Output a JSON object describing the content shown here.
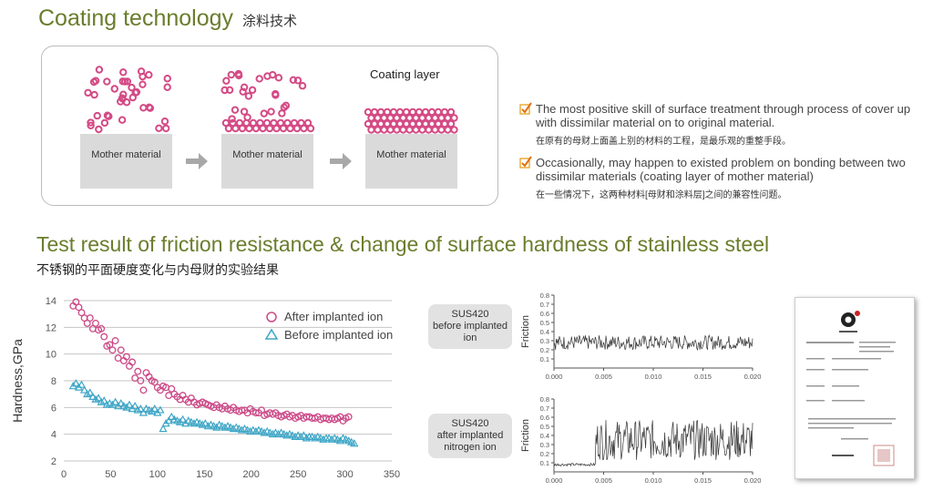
{
  "section1": {
    "title": "Coating technology",
    "title_zh": "涂料技术",
    "mother_label": "Mother material",
    "coating_layer_label": "Coating layer",
    "particle_color": "#d44a85",
    "bullets": [
      {
        "en": "The most positive skill of surface treatment through process of cover up with dissimilar material on to original material.",
        "zh": "在原有的母财上面盖上别的材料的工程，是最乐观的重整手段。"
      },
      {
        "en": "Occasionally, may happen to existed problem on bonding between two dissimilar materials (coating layer of mother material)",
        "zh": "在一些情况下，这两种材料[母财和涂料层]之间的兼容性问题。"
      }
    ]
  },
  "section2": {
    "title": "Test result of friction resistance & change of surface hardness of stainless steel",
    "subtitle_zh": "不锈钢的平面硬度变化与内母财的实验结果",
    "sus_before": [
      "SUS420",
      "before implanted",
      "ion"
    ],
    "sus_after": [
      "SUS420",
      "after implanted",
      "nitrogen ion"
    ],
    "accent_color": "#6a7d2c"
  },
  "chart_data": [
    {
      "type": "scatter",
      "ylabel": "Hardness,GPa",
      "xlabel": "",
      "xlim": [
        0,
        350
      ],
      "ylim": [
        2,
        14
      ],
      "xticks": [
        0,
        50,
        100,
        150,
        200,
        250,
        300,
        350
      ],
      "yticks": [
        2,
        4,
        6,
        8,
        10,
        12,
        14
      ],
      "legend_position": "top-right",
      "series": [
        {
          "name": "After implanted ion",
          "marker": "circle",
          "color": "#cc4a88",
          "x": [
            10,
            13,
            16,
            19,
            22,
            25,
            28,
            31,
            34,
            37,
            40,
            43,
            46,
            49,
            52,
            55,
            58,
            61,
            64,
            67,
            70,
            73,
            76,
            79,
            82,
            85,
            88,
            91,
            94,
            97,
            100,
            103,
            106,
            109,
            112,
            115,
            118,
            121,
            124,
            127,
            130,
            133,
            136,
            139,
            142,
            145,
            148,
            151,
            154,
            157,
            160,
            163,
            166,
            169,
            172,
            175,
            178,
            181,
            184,
            187,
            190,
            193,
            196,
            199,
            202,
            205,
            208,
            211,
            214,
            217,
            220,
            223,
            226,
            229,
            232,
            235,
            238,
            241,
            244,
            247,
            250,
            253,
            256,
            259,
            262,
            265,
            268,
            271,
            274,
            277,
            280,
            283,
            286,
            289,
            292,
            295,
            298,
            301,
            304
          ],
          "y": [
            13.6,
            13.9,
            13.5,
            13.1,
            12.7,
            12.3,
            12.7,
            11.9,
            12.3,
            11.8,
            11.9,
            11.3,
            10.6,
            10.7,
            10.3,
            11.0,
            9.7,
            10.3,
            9.5,
            9.8,
            9.1,
            9.4,
            8.2,
            8.7,
            8.0,
            7.3,
            8.6,
            8.3,
            8.0,
            7.9,
            7.5,
            7.3,
            7.6,
            7.5,
            6.9,
            7.4,
            7.0,
            6.8,
            6.6,
            6.9,
            6.6,
            6.4,
            6.7,
            6.4,
            6.2,
            6.3,
            6.4,
            6.3,
            6.2,
            6.1,
            6.0,
            6.2,
            6.0,
            5.9,
            6.1,
            5.9,
            5.8,
            6.0,
            5.8,
            5.7,
            5.8,
            5.8,
            5.6,
            5.9,
            5.7,
            5.6,
            5.6,
            5.8,
            5.4,
            5.5,
            5.6,
            5.5,
            5.6,
            5.4,
            5.3,
            5.4,
            5.5,
            5.3,
            5.4,
            5.2,
            5.3,
            5.4,
            5.2,
            5.3,
            5.3,
            5.2,
            5.2,
            5.3,
            5.1,
            5.2,
            5.2,
            5.1,
            5.2,
            5.1,
            5.2,
            5.3,
            5.0,
            5.2,
            5.3
          ]
        },
        {
          "name": "Before implanted ion",
          "marker": "triangle",
          "color": "#3ea6c6",
          "x": [
            10,
            13,
            16,
            19,
            22,
            25,
            28,
            31,
            34,
            37,
            40,
            43,
            46,
            49,
            52,
            55,
            58,
            61,
            64,
            67,
            70,
            73,
            76,
            79,
            82,
            85,
            88,
            91,
            94,
            97,
            100,
            103,
            106,
            109,
            112,
            115,
            118,
            121,
            124,
            127,
            130,
            133,
            136,
            139,
            142,
            145,
            148,
            151,
            154,
            157,
            160,
            163,
            166,
            169,
            172,
            175,
            178,
            181,
            184,
            187,
            190,
            193,
            196,
            199,
            202,
            205,
            208,
            211,
            214,
            217,
            220,
            223,
            226,
            229,
            232,
            235,
            238,
            241,
            244,
            247,
            250,
            253,
            256,
            259,
            262,
            265,
            268,
            271,
            274,
            277,
            280,
            283,
            286,
            289,
            292,
            295,
            298,
            301,
            304,
            307,
            310
          ],
          "y": [
            7.6,
            7.8,
            7.5,
            7.7,
            7.3,
            7.0,
            7.1,
            6.8,
            6.6,
            6.7,
            6.4,
            6.5,
            6.2,
            6.3,
            6.2,
            6.4,
            6.1,
            6.3,
            6.1,
            6.0,
            6.2,
            5.9,
            6.1,
            5.8,
            5.9,
            5.6,
            5.9,
            5.8,
            5.7,
            5.9,
            5.6,
            5.8,
            4.4,
            4.8,
            5.0,
            5.3,
            5.1,
            5.0,
            4.9,
            5.1,
            4.8,
            5.0,
            4.9,
            4.8,
            4.9,
            4.8,
            4.7,
            4.8,
            4.6,
            4.7,
            4.6,
            4.5,
            4.7,
            4.6,
            4.5,
            4.6,
            4.5,
            4.4,
            4.5,
            4.4,
            4.3,
            4.4,
            4.3,
            4.2,
            4.3,
            4.2,
            4.3,
            4.2,
            4.1,
            4.2,
            4.1,
            4.0,
            4.1,
            4.0,
            4.1,
            4.0,
            3.9,
            4.0,
            3.9,
            3.8,
            3.9,
            3.8,
            3.9,
            3.7,
            3.8,
            3.8,
            3.7,
            3.8,
            3.7,
            3.6,
            3.7,
            3.7,
            3.6,
            3.7,
            3.6,
            3.5,
            3.7,
            3.6,
            3.5,
            3.4,
            3.3
          ]
        }
      ]
    },
    {
      "type": "line",
      "title": "SUS420 before implanted ion",
      "ylabel": "Friction",
      "xlim": [
        0,
        0.02
      ],
      "ylim": [
        0,
        0.8
      ],
      "xticks": [
        "0.000",
        "0.005",
        "0.010",
        "0.015",
        "0.020"
      ],
      "yticks": [
        "0.1",
        "0.2",
        "0.3",
        "0.4",
        "0.5",
        "0.6",
        "0.7",
        "0.8"
      ],
      "description_values": {
        "mean": 0.28,
        "noise": 0.08,
        "points": 260
      }
    },
    {
      "type": "line",
      "title": "SUS420 after implanted nitrogen ion",
      "ylabel": "Friction",
      "xlim": [
        0,
        0.02
      ],
      "ylim": [
        0,
        0.8
      ],
      "xticks": [
        "0.000",
        "0.005",
        "0.010",
        "0.015",
        "0.020"
      ],
      "yticks": [
        "0.1",
        "0.2",
        "0.3",
        "0.4",
        "0.5",
        "0.6",
        "0.7",
        "0.8"
      ],
      "description_values": {
        "start_level": 0.08,
        "transition_x": 0.0042,
        "mean": 0.35,
        "noise": 0.22,
        "points": 260
      }
    }
  ]
}
